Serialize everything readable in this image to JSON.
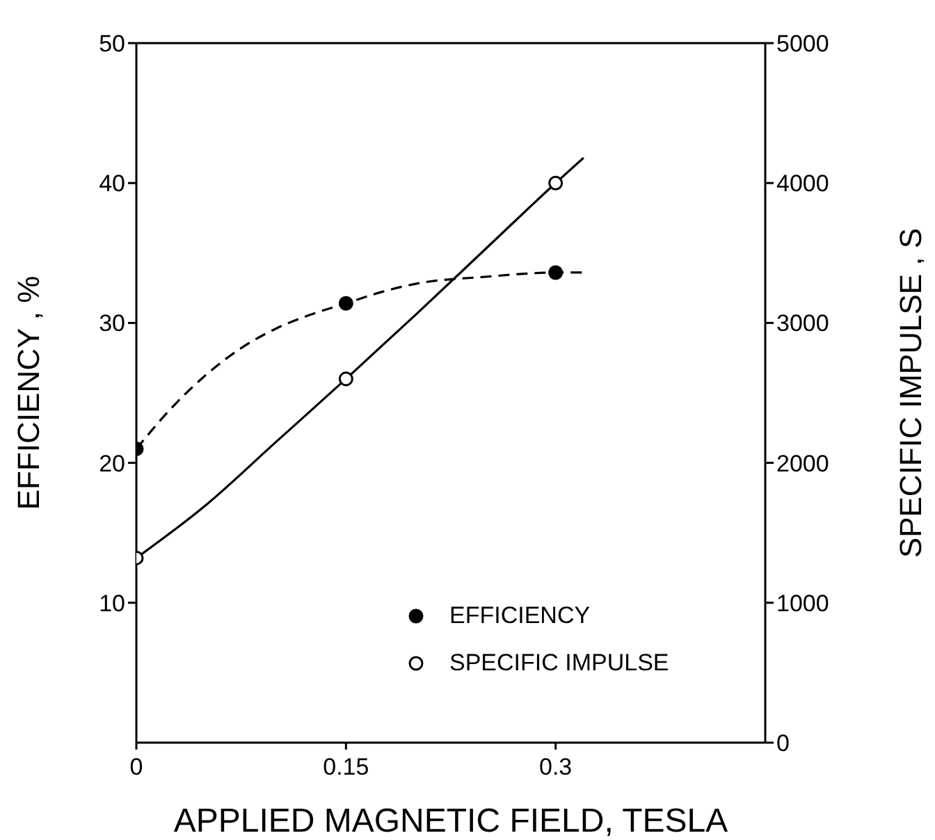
{
  "chart_data": {
    "type": "scatter",
    "xlabel": "APPLIED MAGNETIC FIELD, TESLA",
    "ylabel": "EFFICIENCY , %",
    "y2label": "SPECIFIC IMPULSE , S",
    "xlim": [
      0,
      0.45
    ],
    "xticks": [
      0,
      0.15,
      0.3
    ],
    "ylim": [
      0,
      50
    ],
    "yticks": [
      10,
      20,
      30,
      40,
      50
    ],
    "y2lim": [
      0,
      5000
    ],
    "y2ticks": [
      0,
      1000,
      2000,
      3000,
      4000,
      5000
    ],
    "legend": "bottom right",
    "series": [
      {
        "name": "EFFICIENCY",
        "color": "#000000",
        "marker": "circle",
        "x": [
          0,
          0.15,
          0.3
        ],
        "values": [
          21,
          31.4,
          33.6
        ]
      },
      {
        "name": "SPECIFIC IMPULSE",
        "axis": "y2",
        "color": "#000000",
        "marker": "circle",
        "x": [
          0,
          0.15,
          0.3
        ],
        "values": [
          1320,
          2600,
          4000
        ]
      },
      {
        "type": "line",
        "color": "#000000",
        "line_style": "dashed",
        "marker": "none",
        "x": [
          0,
          0.025,
          0.05,
          0.075,
          0.1,
          0.125,
          0.15,
          0.175,
          0.2,
          0.25,
          0.3,
          0.32
        ],
        "values": [
          21,
          23.9,
          26.3,
          28.2,
          29.6,
          30.6,
          31.4,
          32.2,
          32.8,
          33.3,
          33.6,
          33.6
        ]
      },
      {
        "type": "line",
        "axis": "y2",
        "color": "#000000",
        "line_style": "solid",
        "marker": "none",
        "x": [
          0,
          0.05,
          0.1,
          0.15,
          0.2,
          0.25,
          0.3,
          0.32
        ],
        "values": [
          1320,
          1700,
          2150,
          2600,
          3060,
          3530,
          4000,
          4180
        ]
      }
    ]
  }
}
